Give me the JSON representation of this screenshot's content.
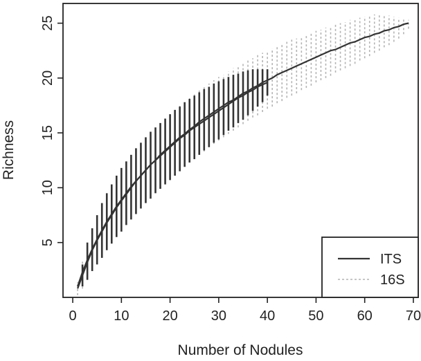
{
  "chart_data": {
    "type": "line",
    "xlabel": "Number of Nodules",
    "ylabel": "Richness",
    "xlim": [
      -2,
      71
    ],
    "ylim": [
      0,
      26.8
    ],
    "x_ticks": [
      0,
      10,
      20,
      30,
      40,
      50,
      60,
      70
    ],
    "y_ticks": [
      5,
      10,
      15,
      20,
      25
    ],
    "legend": {
      "position": "bottom-right",
      "entries": [
        "ITS",
        "16S"
      ]
    },
    "colors": {
      "its": "#333333",
      "s16": "#b3b3b3",
      "axis": "#222222"
    },
    "series": [
      {
        "name": "ITS",
        "style": "solid",
        "x": [
          1,
          2,
          3,
          4,
          5,
          6,
          7,
          8,
          9,
          10,
          11,
          12,
          13,
          14,
          15,
          16,
          17,
          18,
          19,
          20,
          21,
          22,
          23,
          24,
          25,
          26,
          27,
          28,
          29,
          30,
          31,
          32,
          33,
          34,
          35,
          36,
          37,
          38,
          39,
          40
        ],
        "y": [
          1.0,
          2.3,
          3.4,
          4.4,
          5.3,
          6.1,
          6.9,
          7.6,
          8.3,
          8.9,
          9.5,
          10.1,
          10.6,
          11.1,
          11.6,
          12.1,
          12.5,
          12.9,
          13.3,
          13.7,
          14.1,
          14.5,
          14.8,
          15.2,
          15.5,
          15.8,
          16.1,
          16.4,
          16.7,
          17.0,
          17.3,
          17.6,
          17.9,
          18.2,
          18.4,
          18.7,
          18.9,
          19.2,
          19.4,
          19.6
        ],
        "lower": [
          1.0,
          1.0,
          1.6,
          2.4,
          3.0,
          3.6,
          4.3,
          4.9,
          5.5,
          6.0,
          6.6,
          7.1,
          7.6,
          8.1,
          8.6,
          9.0,
          9.5,
          9.9,
          10.3,
          10.7,
          11.1,
          11.5,
          11.9,
          12.3,
          12.6,
          13.0,
          13.4,
          13.7,
          14.1,
          14.4,
          14.8,
          15.2,
          15.5,
          15.9,
          16.2,
          16.6,
          17.0,
          17.4,
          17.8,
          18.4
        ],
        "upper": [
          1.0,
          3.0,
          5.0,
          6.3,
          7.5,
          8.6,
          9.5,
          10.3,
          11.1,
          11.8,
          12.4,
          13.0,
          13.6,
          14.1,
          14.6,
          15.1,
          15.5,
          15.9,
          16.3,
          16.7,
          17.1,
          17.4,
          17.8,
          18.1,
          18.4,
          18.7,
          19.0,
          19.2,
          19.5,
          19.7,
          19.9,
          20.1,
          20.3,
          20.4,
          20.6,
          20.7,
          20.8,
          20.8,
          20.8,
          20.8
        ]
      },
      {
        "name": "16S",
        "style": "dotted",
        "x": [
          1,
          2,
          3,
          4,
          5,
          6,
          7,
          8,
          9,
          10,
          11,
          12,
          13,
          14,
          15,
          16,
          17,
          18,
          19,
          20,
          21,
          22,
          23,
          24,
          25,
          26,
          27,
          28,
          29,
          30,
          31,
          32,
          33,
          34,
          35,
          36,
          37,
          38,
          39,
          40,
          41,
          42,
          43,
          44,
          45,
          46,
          47,
          48,
          49,
          50,
          51,
          52,
          53,
          54,
          55,
          56,
          57,
          58,
          59,
          60,
          61,
          62,
          63,
          64,
          65,
          66,
          67,
          68,
          69
        ],
        "y": [
          0.8,
          2.0,
          3.2,
          4.3,
          5.2,
          6.0,
          6.8,
          7.5,
          8.2,
          8.8,
          9.4,
          10.0,
          10.6,
          11.1,
          11.6,
          12.1,
          12.5,
          13.0,
          13.4,
          13.8,
          14.2,
          14.6,
          14.9,
          15.3,
          15.6,
          16.0,
          16.3,
          16.6,
          16.9,
          17.2,
          17.5,
          17.8,
          18.0,
          18.3,
          18.6,
          18.8,
          19.1,
          19.3,
          19.6,
          19.8,
          20.0,
          20.3,
          20.5,
          20.7,
          20.9,
          21.1,
          21.3,
          21.5,
          21.7,
          21.9,
          22.1,
          22.3,
          22.5,
          22.6,
          22.8,
          23.0,
          23.2,
          23.3,
          23.5,
          23.7,
          23.8,
          24.0,
          24.1,
          24.3,
          24.4,
          24.6,
          24.7,
          24.9,
          25.0
        ],
        "lower": [
          0.2,
          0.8,
          1.6,
          2.4,
          3.1,
          3.8,
          4.5,
          5.1,
          5.7,
          6.2,
          6.8,
          7.3,
          7.8,
          8.3,
          8.7,
          9.2,
          9.6,
          10.0,
          10.4,
          10.8,
          11.2,
          11.6,
          11.9,
          12.3,
          12.7,
          13.0,
          13.3,
          13.7,
          14.0,
          14.3,
          14.6,
          14.9,
          15.2,
          15.5,
          15.8,
          16.1,
          16.4,
          16.6,
          16.9,
          17.2,
          17.4,
          17.7,
          17.9,
          18.2,
          18.4,
          18.6,
          18.9,
          19.1,
          19.3,
          19.6,
          19.8,
          20.0,
          20.2,
          20.5,
          20.7,
          20.9,
          21.1,
          21.3,
          21.6,
          21.8,
          22.0,
          22.3,
          22.5,
          22.8,
          23.0,
          23.3,
          23.6,
          24.0,
          24.5
        ],
        "upper": [
          1.4,
          3.3,
          4.8,
          6.2,
          7.3,
          8.3,
          9.2,
          10.0,
          10.7,
          11.4,
          12.1,
          12.7,
          13.3,
          13.9,
          14.4,
          14.9,
          15.4,
          15.8,
          16.3,
          16.7,
          17.1,
          17.5,
          17.8,
          18.2,
          18.5,
          18.9,
          19.2,
          19.5,
          19.8,
          20.1,
          20.3,
          20.6,
          20.9,
          21.1,
          21.4,
          21.6,
          21.8,
          22.1,
          22.3,
          22.5,
          22.7,
          22.9,
          23.1,
          23.3,
          23.5,
          23.6,
          23.8,
          24.0,
          24.1,
          24.3,
          24.4,
          24.6,
          24.7,
          24.9,
          25.0,
          25.1,
          25.3,
          25.4,
          25.5,
          25.6,
          25.7,
          25.8,
          25.8,
          25.8,
          25.7,
          25.6,
          25.5,
          25.4,
          25.3
        ]
      }
    ]
  }
}
